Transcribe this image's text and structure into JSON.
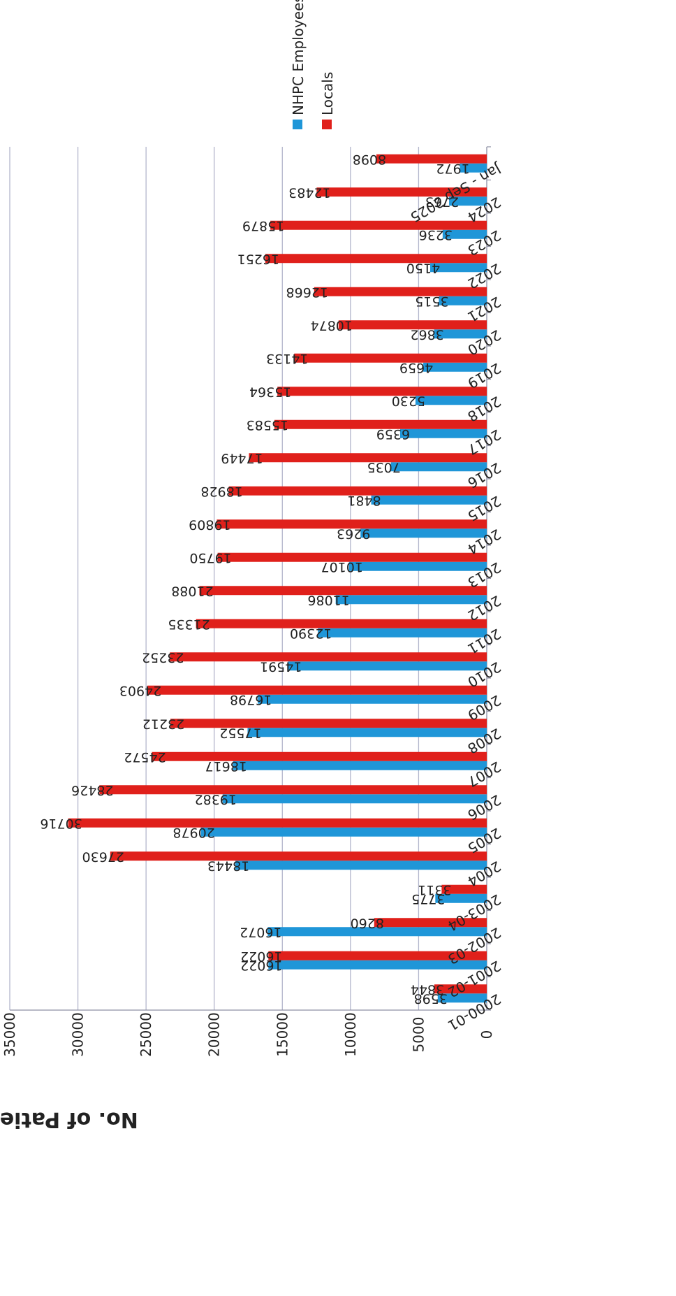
{
  "chart_data": {
    "type": "bar",
    "orientation": "rotated-180",
    "title": "",
    "xlabel": "",
    "ylabel": "No. of Patients",
    "ylim": [
      0,
      35000
    ],
    "yticks": [
      0,
      5000,
      10000,
      15000,
      20000,
      25000,
      30000,
      35000
    ],
    "grid": true,
    "legend_position": "top-right",
    "categories": [
      "2000-01",
      "2001-02",
      "2002-03",
      "2003-04",
      "2004",
      "2005",
      "2006",
      "2007",
      "2008",
      "2009",
      "2010",
      "2011",
      "2012",
      "2013",
      "2014",
      "2015",
      "2016",
      "2017",
      "2018",
      "2019",
      "2020",
      "2021",
      "2022",
      "2023",
      "2024",
      "Jan - Sep 2025"
    ],
    "series": [
      {
        "name": "NHPC Employees",
        "color": "#1f96d8",
        "values": [
          3598,
          16022,
          16072,
          3775,
          18443,
          20978,
          19382,
          18617,
          17552,
          16798,
          14591,
          12390,
          11086,
          10107,
          9263,
          8481,
          7035,
          6359,
          5230,
          4659,
          3862,
          3515,
          4150,
          3236,
          2763,
          1972
        ]
      },
      {
        "name": "Locals",
        "color": "#e0201b",
        "values": [
          3844,
          16022,
          8260,
          3311,
          27630,
          30716,
          28426,
          24572,
          23212,
          24903,
          23252,
          21335,
          21088,
          19750,
          19809,
          18928,
          17449,
          15583,
          15364,
          14133,
          10874,
          12668,
          16251,
          15879,
          12483,
          8098
        ]
      }
    ]
  }
}
